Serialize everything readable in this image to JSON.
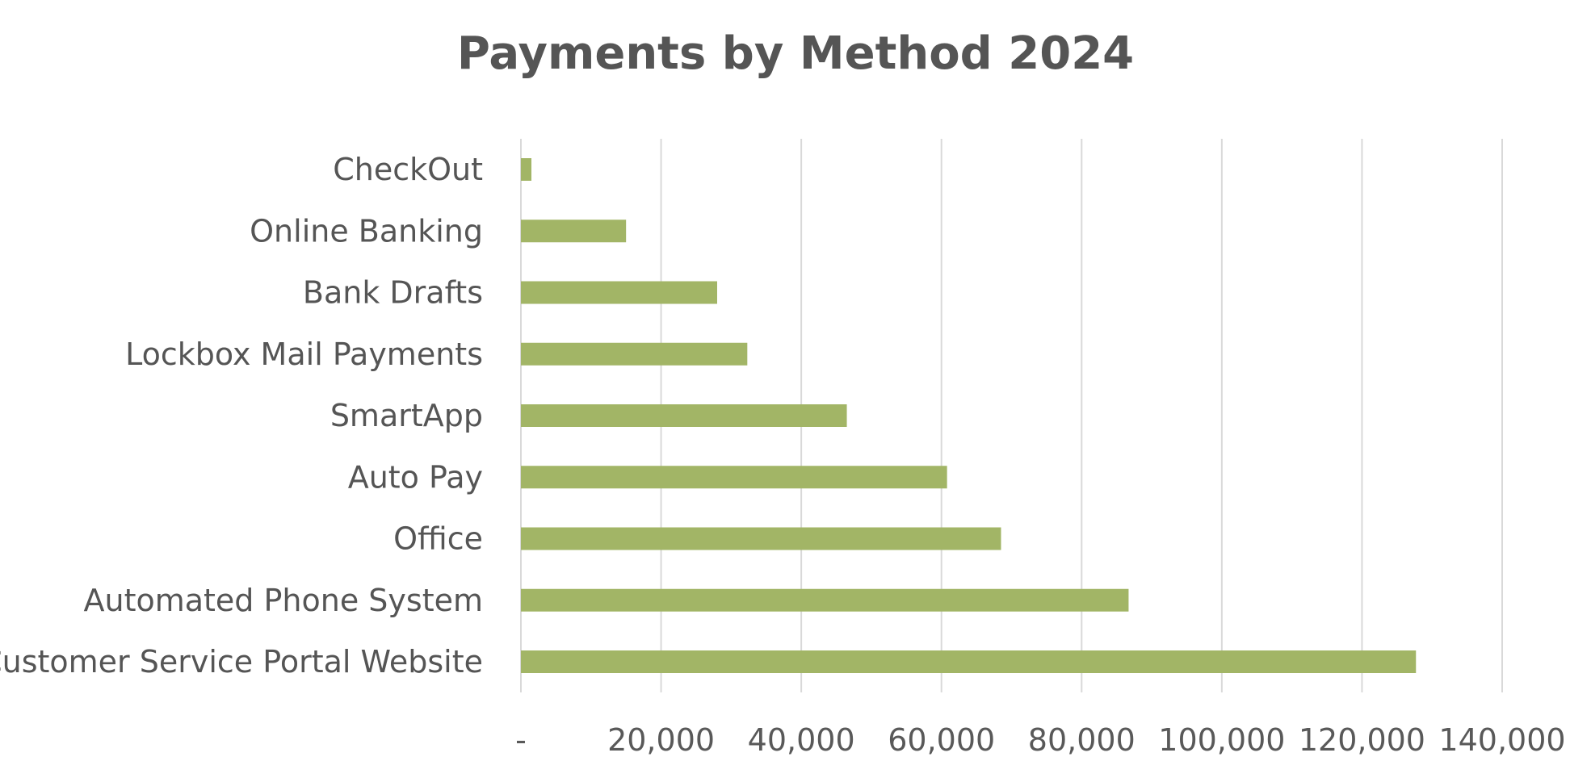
{
  "chart_data": {
    "type": "bar",
    "orientation": "horizontal",
    "title": "Payments by Method 2024",
    "xlabel": "",
    "ylabel": "",
    "categories": [
      "CheckOut",
      "Online Banking",
      "Bank Drafts",
      "Lockbox Mail Payments",
      "SmartApp",
      "Auto Pay",
      "Office",
      "Automated Phone System",
      "Customer Service Portal Website"
    ],
    "values": [
      1500,
      15000,
      28000,
      32300,
      46500,
      60800,
      68500,
      86700,
      127700
    ],
    "xlim": [
      0,
      140000
    ],
    "x_ticks": [
      0,
      20000,
      40000,
      60000,
      80000,
      100000,
      120000,
      140000
    ],
    "x_tick_labels": [
      "-",
      "20,000",
      "40,000",
      "60,000",
      "80,000",
      "100,000",
      "120,000",
      "140,000"
    ],
    "grid": "vertical",
    "legend": "none",
    "bar_color": "#a2b566",
    "text_color": "#555555",
    "grid_color": "#d9d9d9"
  }
}
